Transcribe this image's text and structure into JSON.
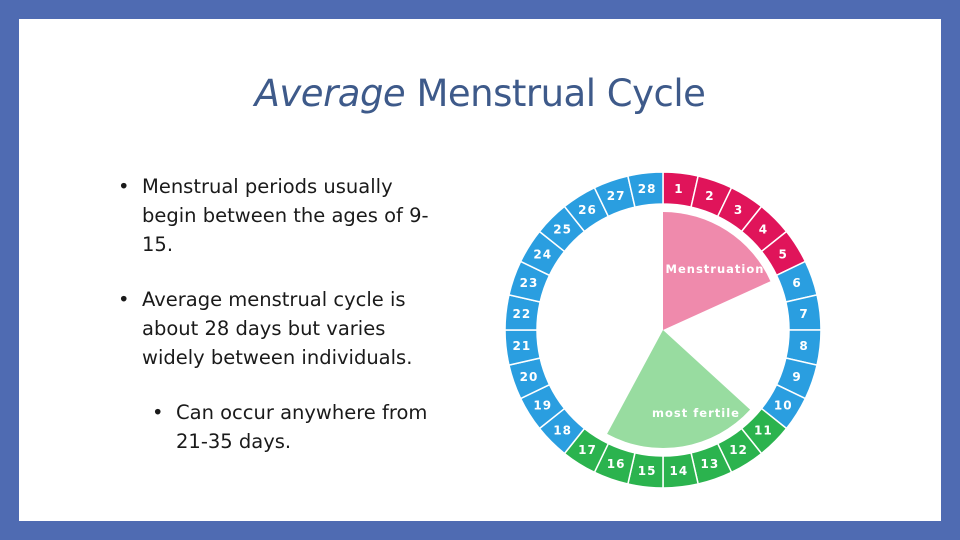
{
  "slide": {
    "title_em": "Average",
    "title_rest": " Menstrual Cycle",
    "bullets": [
      "Menstrual periods usually begin between the ages of 9-15.",
      "Average menstrual cycle is about 28 days but varies widely between individuals."
    ],
    "sub_bullets": [
      "Can occur anywhere from 21-35 days."
    ]
  },
  "diagram": {
    "days": [
      "1",
      "2",
      "3",
      "4",
      "5",
      "6",
      "7",
      "8",
      "9",
      "10",
      "11",
      "12",
      "13",
      "14",
      "15",
      "16",
      "17",
      "18",
      "19",
      "20",
      "21",
      "22",
      "23",
      "24",
      "25",
      "26",
      "27",
      "28"
    ],
    "phase_labels": {
      "menstruation": "Menstruation",
      "fertile": "most fertile"
    },
    "menstruation_days": [
      1,
      5
    ],
    "fertile_days": [
      11,
      17
    ],
    "colors": {
      "ring_blue": "#2a9ee0",
      "ring_red": "#e0145a",
      "ring_green": "#2bb34e",
      "menstruation_fill": "#ef8aac",
      "fertile_fill": "#98dca0",
      "other_fill": "#ffffff"
    }
  }
}
